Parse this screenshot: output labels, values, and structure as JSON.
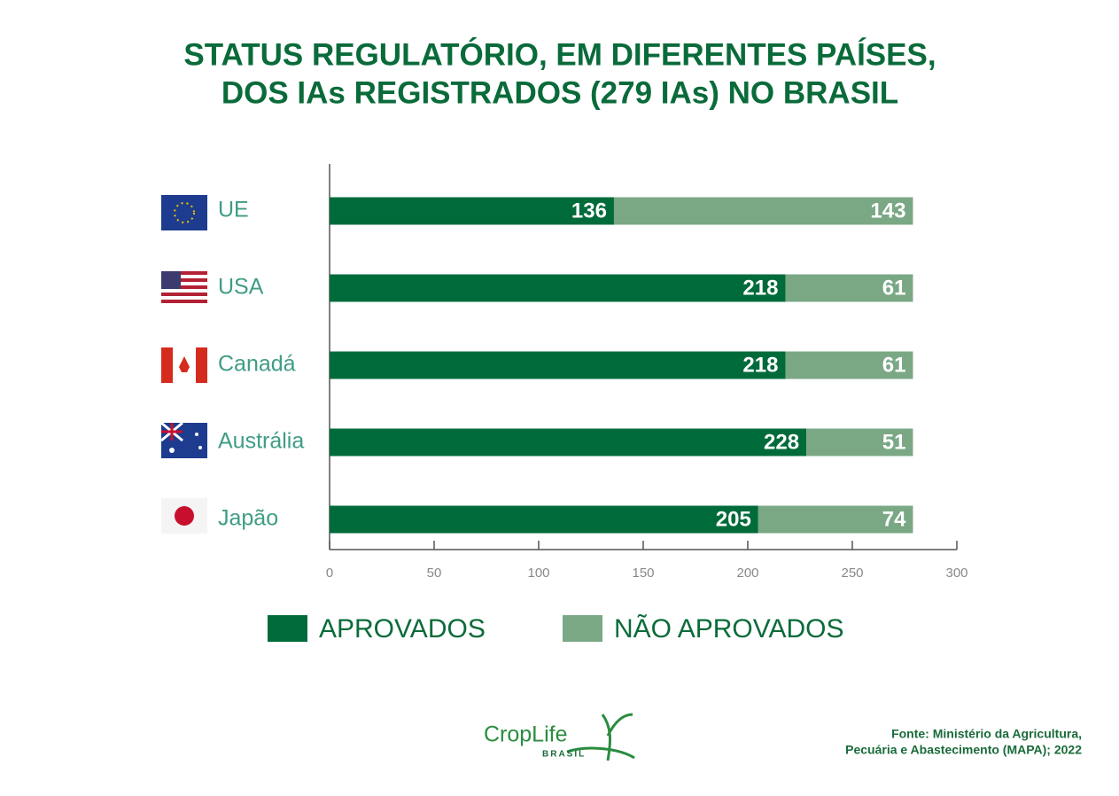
{
  "chart_data": {
    "type": "stacked-barh",
    "title": [
      "STATUS REGULATÓRIO, EM DIFERENTES PAÍSES,",
      "DOS IAs REGISTRADOS (279 IAs) NO BRASIL"
    ],
    "categories": [
      "UE",
      "USA",
      "Canadá",
      "Austrália",
      "Japão"
    ],
    "series": [
      {
        "name": "APROVADOS",
        "color": "#006b3a",
        "values": [
          136,
          218,
          218,
          228,
          205
        ]
      },
      {
        "name": "NÃO APROVADOS",
        "color": "#7aa884",
        "values": [
          143,
          61,
          61,
          51,
          74
        ]
      }
    ],
    "xlim": [
      0,
      300
    ],
    "xticks": [
      0,
      50,
      100,
      150,
      200,
      250,
      300
    ],
    "source": [
      "Fonte: Ministério da Agricultura,",
      "Pecuária e Abastecimento (MAPA); 2022"
    ],
    "logo": {
      "name": "CropLife",
      "sub": "BRASIL"
    }
  }
}
